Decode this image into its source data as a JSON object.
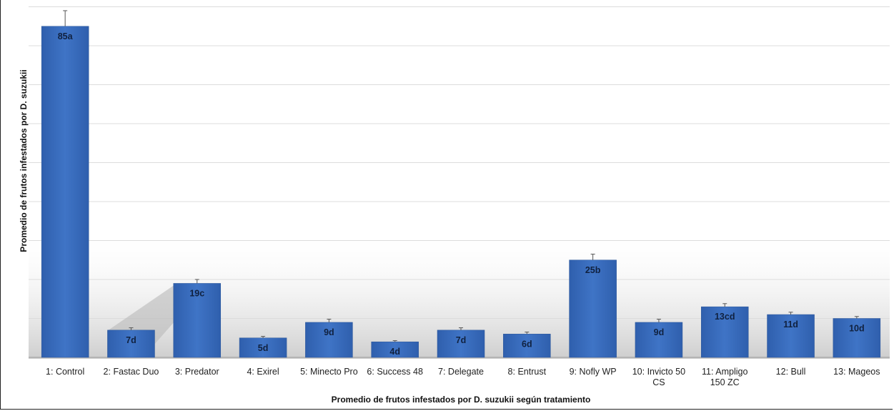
{
  "chart_data": {
    "type": "bar",
    "xlabel": "Promedio de frutos infestados por D. suzukii según tratamiento",
    "ylabel": "Promedio de frutos infestados por D. suzukii",
    "ylim": [
      0,
      90
    ],
    "grid": true,
    "bar_color": "#3a6dbe",
    "categories": [
      "1: Control",
      "2: Fastac Duo",
      "3: Predator",
      "4: Exirel",
      "5: Minecto Pro",
      "6: Success 48",
      "7: Delegate",
      "8: Entrust",
      "9: Nofly WP",
      "10: Invicto 50 CS",
      "11: Ampligo 150 ZC",
      "12: Bull",
      "13: Mageos"
    ],
    "values": [
      85,
      7,
      19,
      5,
      9,
      4,
      7,
      6,
      25,
      9,
      13,
      11,
      10
    ],
    "errors": [
      4,
      0.6,
      1,
      0.4,
      0.8,
      0.3,
      0.6,
      0.5,
      1.5,
      0.8,
      0.8,
      0.6,
      0.5
    ],
    "data_labels": [
      "85a",
      "7d",
      "19c",
      "5d",
      "9d",
      "4d",
      "7d",
      "6d",
      "25b",
      "9d",
      "13cd",
      "11d",
      "10d"
    ]
  }
}
